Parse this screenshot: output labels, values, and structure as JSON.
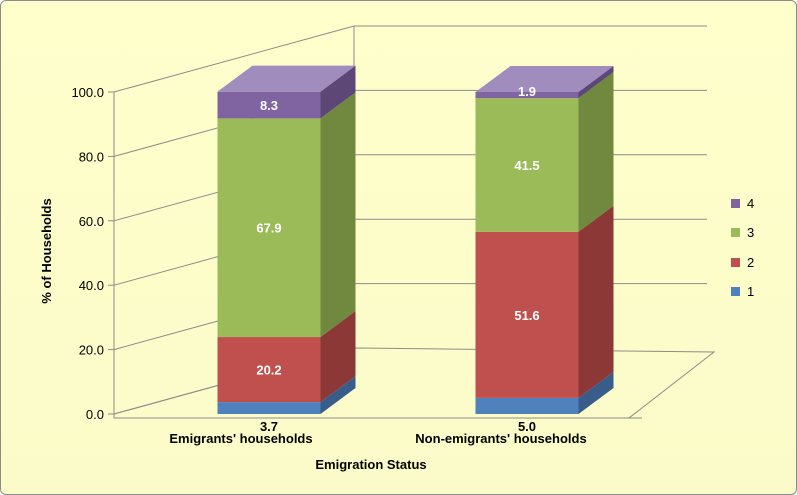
{
  "chart_data": {
    "type": "bar",
    "stacked": true,
    "three_d": true,
    "categories": [
      "Emigrants' households",
      "Non-emigrants' households"
    ],
    "series": [
      {
        "name": "1",
        "values": [
          3.7,
          5.0
        ],
        "color": "#4f81bd",
        "side": "#385d8a",
        "top": "#7ba0d1"
      },
      {
        "name": "2",
        "values": [
          20.2,
          51.6
        ],
        "color": "#c0504d",
        "side": "#8c3836",
        "top": "#d3807e"
      },
      {
        "name": "3",
        "values": [
          67.9,
          41.5
        ],
        "color": "#9bbb59",
        "side": "#71893f",
        "top": "#b9d08a"
      },
      {
        "name": "4",
        "values": [
          8.3,
          1.9
        ],
        "color": "#8064a2",
        "side": "#5c4776",
        "top": "#a08cbd"
      }
    ],
    "data_labels": [
      [
        "3.7",
        "5.0"
      ],
      [
        "20.2",
        "51.6"
      ],
      [
        "67.9",
        "41.5"
      ],
      [
        "8.3",
        "1.9"
      ]
    ],
    "title": "",
    "xlabel": "Emigration Status",
    "ylabel": "% of Households",
    "ylim": [
      0,
      100
    ],
    "yticks": [
      "0.0",
      "20.0",
      "40.0",
      "60.0",
      "80.0",
      "100.0"
    ],
    "grid": true,
    "legend_position": "right",
    "legend": [
      "4",
      "3",
      "2",
      "1"
    ],
    "background": "#ffffcc"
  }
}
